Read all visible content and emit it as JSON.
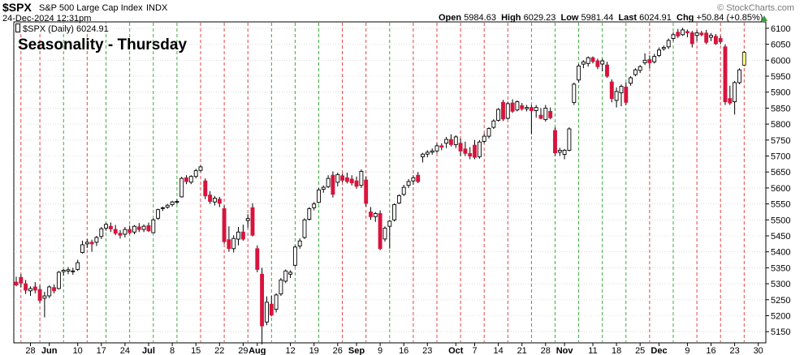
{
  "header": {
    "symbol": "$SPX",
    "name": "S&P 500 Large Cap Index",
    "exchange": "INDX",
    "date": "24-Dec-2024 12:31pm",
    "watermark": "© StockCharts.com",
    "open_label": "Open",
    "open": "5984.63",
    "high_label": "High",
    "high": "6029.23",
    "low_label": "Low",
    "low": "5981.44",
    "last_label": "Last",
    "last": "6024.91",
    "chg_label": "Chg",
    "chg": "+50.84 (+0.85%)",
    "legend": "$SPX (Daily) 6024.91"
  },
  "chart_data": {
    "type": "candlestick",
    "title": "Seasonality - Thursday",
    "y_ticks": [
      5150,
      5200,
      5250,
      5300,
      5350,
      5400,
      5450,
      5500,
      5550,
      5600,
      5650,
      5700,
      5750,
      5800,
      5850,
      5900,
      5950,
      6000,
      6050,
      6100
    ],
    "ylim": [
      5120,
      6110
    ],
    "x_labels": [
      {
        "text": "28",
        "bold": false,
        "idx": 3
      },
      {
        "text": "Jun",
        "bold": true,
        "idx": 7
      },
      {
        "text": "10",
        "bold": false,
        "idx": 13
      },
      {
        "text": "17",
        "bold": false,
        "idx": 18
      },
      {
        "text": "24",
        "bold": false,
        "idx": 23
      },
      {
        "text": "Jul",
        "bold": true,
        "idx": 28
      },
      {
        "text": "8",
        "bold": false,
        "idx": 33
      },
      {
        "text": "15",
        "bold": false,
        "idx": 38
      },
      {
        "text": "22",
        "bold": false,
        "idx": 43
      },
      {
        "text": "29",
        "bold": false,
        "idx": 48
      },
      {
        "text": "Aug",
        "bold": true,
        "idx": 51
      },
      {
        "text": "12",
        "bold": false,
        "idx": 58
      },
      {
        "text": "19",
        "bold": false,
        "idx": 63
      },
      {
        "text": "26",
        "bold": false,
        "idx": 68
      },
      {
        "text": "Sep",
        "bold": true,
        "idx": 72
      },
      {
        "text": "9",
        "bold": false,
        "idx": 77
      },
      {
        "text": "16",
        "bold": false,
        "idx": 82
      },
      {
        "text": "23",
        "bold": false,
        "idx": 87
      },
      {
        "text": "Oct",
        "bold": true,
        "idx": 93
      },
      {
        "text": "7",
        "bold": false,
        "idx": 97
      },
      {
        "text": "14",
        "bold": false,
        "idx": 102
      },
      {
        "text": "21",
        "bold": false,
        "idx": 107
      },
      {
        "text": "28",
        "bold": false,
        "idx": 112
      },
      {
        "text": "Nov",
        "bold": true,
        "idx": 116
      },
      {
        "text": "11",
        "bold": false,
        "idx": 122
      },
      {
        "text": "18",
        "bold": false,
        "idx": 127
      },
      {
        "text": "25",
        "bold": false,
        "idx": 132
      },
      {
        "text": "Dec",
        "bold": true,
        "idx": 136
      },
      {
        "text": "9",
        "bold": false,
        "idx": 142
      },
      {
        "text": "16",
        "bold": false,
        "idx": 147
      },
      {
        "text": "23",
        "bold": false,
        "idx": 152
      },
      {
        "text": "30",
        "bold": false,
        "idx": 157
      }
    ],
    "thursday_lines": [
      {
        "idx": 1,
        "color": "red"
      },
      {
        "idx": 5,
        "color": "red"
      },
      {
        "idx": 10,
        "color": "green"
      },
      {
        "idx": 15,
        "color": "red"
      },
      {
        "idx": 19,
        "color": "green"
      },
      {
        "idx": 24,
        "color": "green"
      },
      {
        "idx": 29,
        "color": "green"
      },
      {
        "idx": 34,
        "color": "green"
      },
      {
        "idx": 39,
        "color": "red"
      },
      {
        "idx": 44,
        "color": "red"
      },
      {
        "idx": 49,
        "color": "red"
      },
      {
        "idx": 54,
        "color": "green"
      },
      {
        "idx": 59,
        "color": "green"
      },
      {
        "idx": 64,
        "color": "green"
      },
      {
        "idx": 69,
        "color": "red"
      },
      {
        "idx": 74,
        "color": "red"
      },
      {
        "idx": 79,
        "color": "green"
      },
      {
        "idx": 84,
        "color": "red"
      },
      {
        "idx": 89,
        "color": "red"
      },
      {
        "idx": 94,
        "color": "red"
      },
      {
        "idx": 99,
        "color": "red"
      },
      {
        "idx": 104,
        "color": "red"
      },
      {
        "idx": 109,
        "color": "green"
      },
      {
        "idx": 114,
        "color": "green"
      },
      {
        "idx": 119,
        "color": "green"
      },
      {
        "idx": 124,
        "color": "green"
      },
      {
        "idx": 129,
        "color": "green"
      },
      {
        "idx": 134,
        "color": "red"
      },
      {
        "idx": 139,
        "color": "green"
      },
      {
        "idx": 144,
        "color": "red"
      },
      {
        "idx": 149,
        "color": "red"
      },
      {
        "idx": 154,
        "color": "red"
      }
    ],
    "candles": [
      {
        "o": 5305,
        "h": 5322,
        "l": 5292,
        "c": 5296
      },
      {
        "o": 5320,
        "h": 5330,
        "l": 5288,
        "c": 5302
      },
      {
        "o": 5300,
        "h": 5312,
        "l": 5268,
        "c": 5280
      },
      {
        "o": 5278,
        "h": 5292,
        "l": 5262,
        "c": 5285
      },
      {
        "o": 5290,
        "h": 5305,
        "l": 5270,
        "c": 5280
      },
      {
        "o": 5282,
        "h": 5295,
        "l": 5240,
        "c": 5248
      },
      {
        "o": 5255,
        "h": 5275,
        "l": 5195,
        "c": 5262
      },
      {
        "o": 5262,
        "h": 5295,
        "l": 5255,
        "c": 5290
      },
      {
        "o": 5288,
        "h": 5298,
        "l": 5270,
        "c": 5278
      },
      {
        "o": 5285,
        "h": 5340,
        "l": 5282,
        "c": 5336
      },
      {
        "o": 5338,
        "h": 5346,
        "l": 5325,
        "c": 5342
      },
      {
        "o": 5340,
        "h": 5352,
        "l": 5330,
        "c": 5344
      },
      {
        "o": 5338,
        "h": 5350,
        "l": 5328,
        "c": 5340
      },
      {
        "o": 5345,
        "h": 5375,
        "l": 5340,
        "c": 5366
      },
      {
        "o": 5398,
        "h": 5435,
        "l": 5395,
        "c": 5422
      },
      {
        "o": 5425,
        "h": 5440,
        "l": 5412,
        "c": 5430
      },
      {
        "o": 5430,
        "h": 5438,
        "l": 5400,
        "c": 5425
      },
      {
        "o": 5430,
        "h": 5450,
        "l": 5418,
        "c": 5445
      },
      {
        "o": 5448,
        "h": 5478,
        "l": 5440,
        "c": 5472
      },
      {
        "o": 5474,
        "h": 5490,
        "l": 5466,
        "c": 5486
      },
      {
        "o": 5480,
        "h": 5492,
        "l": 5462,
        "c": 5472
      },
      {
        "o": 5470,
        "h": 5484,
        "l": 5452,
        "c": 5458
      },
      {
        "o": 5458,
        "h": 5468,
        "l": 5442,
        "c": 5452
      },
      {
        "o": 5455,
        "h": 5478,
        "l": 5445,
        "c": 5470
      },
      {
        "o": 5470,
        "h": 5482,
        "l": 5455,
        "c": 5460
      },
      {
        "o": 5462,
        "h": 5484,
        "l": 5455,
        "c": 5480
      },
      {
        "o": 5478,
        "h": 5490,
        "l": 5462,
        "c": 5470
      },
      {
        "o": 5470,
        "h": 5486,
        "l": 5462,
        "c": 5480
      },
      {
        "o": 5482,
        "h": 5492,
        "l": 5462,
        "c": 5466
      },
      {
        "o": 5460,
        "h": 5505,
        "l": 5458,
        "c": 5500
      },
      {
        "o": 5505,
        "h": 5535,
        "l": 5500,
        "c": 5532
      },
      {
        "o": 5536,
        "h": 5542,
        "l": 5528,
        "c": 5538
      },
      {
        "o": 5540,
        "h": 5550,
        "l": 5535,
        "c": 5546
      },
      {
        "o": 5548,
        "h": 5560,
        "l": 5542,
        "c": 5556
      },
      {
        "o": 5556,
        "h": 5565,
        "l": 5550,
        "c": 5558
      },
      {
        "o": 5572,
        "h": 5635,
        "l": 5570,
        "c": 5630
      },
      {
        "o": 5632,
        "h": 5640,
        "l": 5612,
        "c": 5620
      },
      {
        "o": 5618,
        "h": 5640,
        "l": 5612,
        "c": 5636
      },
      {
        "o": 5636,
        "h": 5660,
        "l": 5630,
        "c": 5654
      },
      {
        "o": 5655,
        "h": 5672,
        "l": 5650,
        "c": 5666
      },
      {
        "o": 5622,
        "h": 5630,
        "l": 5565,
        "c": 5575
      },
      {
        "o": 5578,
        "h": 5590,
        "l": 5550,
        "c": 5558
      },
      {
        "o": 5556,
        "h": 5575,
        "l": 5545,
        "c": 5568
      },
      {
        "o": 5565,
        "h": 5572,
        "l": 5540,
        "c": 5552
      },
      {
        "o": 5535,
        "h": 5545,
        "l": 5425,
        "c": 5432
      },
      {
        "o": 5438,
        "h": 5480,
        "l": 5400,
        "c": 5410
      },
      {
        "o": 5410,
        "h": 5452,
        "l": 5398,
        "c": 5442
      },
      {
        "o": 5440,
        "h": 5478,
        "l": 5420,
        "c": 5462
      },
      {
        "o": 5462,
        "h": 5485,
        "l": 5435,
        "c": 5440
      },
      {
        "o": 5498,
        "h": 5518,
        "l": 5476,
        "c": 5504
      },
      {
        "o": 5538,
        "h": 5552,
        "l": 5448,
        "c": 5452
      },
      {
        "o": 5410,
        "h": 5420,
        "l": 5336,
        "c": 5345
      },
      {
        "o": 5330,
        "h": 5350,
        "l": 5110,
        "c": 5168
      },
      {
        "o": 5180,
        "h": 5260,
        "l": 5170,
        "c": 5242
      },
      {
        "o": 5236,
        "h": 5262,
        "l": 5198,
        "c": 5202
      },
      {
        "o": 5220,
        "h": 5270,
        "l": 5210,
        "c": 5265
      },
      {
        "o": 5268,
        "h": 5318,
        "l": 5262,
        "c": 5312
      },
      {
        "o": 5308,
        "h": 5345,
        "l": 5302,
        "c": 5340
      },
      {
        "o": 5330,
        "h": 5342,
        "l": 5318,
        "c": 5336
      },
      {
        "o": 5358,
        "h": 5420,
        "l": 5354,
        "c": 5415
      },
      {
        "o": 5418,
        "h": 5442,
        "l": 5410,
        "c": 5434
      },
      {
        "o": 5445,
        "h": 5505,
        "l": 5440,
        "c": 5500
      },
      {
        "o": 5502,
        "h": 5540,
        "l": 5498,
        "c": 5535
      },
      {
        "o": 5538,
        "h": 5556,
        "l": 5530,
        "c": 5550
      },
      {
        "o": 5555,
        "h": 5600,
        "l": 5552,
        "c": 5594
      },
      {
        "o": 5596,
        "h": 5608,
        "l": 5585,
        "c": 5602
      },
      {
        "o": 5604,
        "h": 5640,
        "l": 5600,
        "c": 5630
      },
      {
        "o": 5640,
        "h": 5652,
        "l": 5570,
        "c": 5580
      },
      {
        "o": 5618,
        "h": 5648,
        "l": 5605,
        "c": 5642
      },
      {
        "o": 5638,
        "h": 5645,
        "l": 5618,
        "c": 5624
      },
      {
        "o": 5632,
        "h": 5648,
        "l": 5614,
        "c": 5620
      },
      {
        "o": 5628,
        "h": 5640,
        "l": 5608,
        "c": 5616
      },
      {
        "o": 5622,
        "h": 5636,
        "l": 5598,
        "c": 5605
      },
      {
        "o": 5608,
        "h": 5658,
        "l": 5600,
        "c": 5652
      },
      {
        "o": 5625,
        "h": 5635,
        "l": 5542,
        "c": 5552
      },
      {
        "o": 5525,
        "h": 5540,
        "l": 5500,
        "c": 5510
      },
      {
        "o": 5510,
        "h": 5525,
        "l": 5494,
        "c": 5520
      },
      {
        "o": 5520,
        "h": 5530,
        "l": 5405,
        "c": 5410
      },
      {
        "o": 5440,
        "h": 5480,
        "l": 5432,
        "c": 5474
      },
      {
        "o": 5480,
        "h": 5500,
        "l": 5410,
        "c": 5496
      },
      {
        "o": 5500,
        "h": 5552,
        "l": 5495,
        "c": 5548
      },
      {
        "o": 5553,
        "h": 5580,
        "l": 5550,
        "c": 5576
      },
      {
        "o": 5580,
        "h": 5610,
        "l": 5575,
        "c": 5602
      },
      {
        "o": 5608,
        "h": 5628,
        "l": 5600,
        "c": 5620
      },
      {
        "o": 5622,
        "h": 5640,
        "l": 5610,
        "c": 5632
      },
      {
        "o": 5640,
        "h": 5650,
        "l": 5615,
        "c": 5620
      },
      {
        "o": 5698,
        "h": 5710,
        "l": 5680,
        "c": 5706
      },
      {
        "o": 5706,
        "h": 5718,
        "l": 5696,
        "c": 5712
      },
      {
        "o": 5712,
        "h": 5724,
        "l": 5704,
        "c": 5716
      },
      {
        "o": 5716,
        "h": 5740,
        "l": 5710,
        "c": 5732
      },
      {
        "o": 5732,
        "h": 5740,
        "l": 5718,
        "c": 5728
      },
      {
        "o": 5740,
        "h": 5760,
        "l": 5725,
        "c": 5752
      },
      {
        "o": 5752,
        "h": 5768,
        "l": 5730,
        "c": 5736
      },
      {
        "o": 5736,
        "h": 5765,
        "l": 5725,
        "c": 5760
      },
      {
        "o": 5740,
        "h": 5755,
        "l": 5700,
        "c": 5716
      },
      {
        "o": 5722,
        "h": 5745,
        "l": 5700,
        "c": 5708
      },
      {
        "o": 5708,
        "h": 5728,
        "l": 5690,
        "c": 5700
      },
      {
        "o": 5734,
        "h": 5750,
        "l": 5690,
        "c": 5696
      },
      {
        "o": 5698,
        "h": 5750,
        "l": 5692,
        "c": 5744
      },
      {
        "o": 5746,
        "h": 5770,
        "l": 5740,
        "c": 5762
      },
      {
        "o": 5762,
        "h": 5790,
        "l": 5755,
        "c": 5786
      },
      {
        "o": 5790,
        "h": 5815,
        "l": 5785,
        "c": 5810
      },
      {
        "o": 5812,
        "h": 5850,
        "l": 5808,
        "c": 5846
      },
      {
        "o": 5868,
        "h": 5876,
        "l": 5810,
        "c": 5816
      },
      {
        "o": 5818,
        "h": 5870,
        "l": 5815,
        "c": 5864
      },
      {
        "o": 5866,
        "h": 5878,
        "l": 5835,
        "c": 5840
      },
      {
        "o": 5844,
        "h": 5874,
        "l": 5840,
        "c": 5870
      },
      {
        "o": 5858,
        "h": 5866,
        "l": 5842,
        "c": 5848
      },
      {
        "o": 5848,
        "h": 5860,
        "l": 5840,
        "c": 5852
      },
      {
        "o": 5852,
        "h": 5860,
        "l": 5768,
        "c": 5842
      },
      {
        "o": 5842,
        "h": 5860,
        "l": 5820,
        "c": 5852
      },
      {
        "o": 5828,
        "h": 5850,
        "l": 5815,
        "c": 5818
      },
      {
        "o": 5814,
        "h": 5860,
        "l": 5808,
        "c": 5850
      },
      {
        "o": 5840,
        "h": 5852,
        "l": 5815,
        "c": 5820
      },
      {
        "o": 5780,
        "h": 5790,
        "l": 5700,
        "c": 5710
      },
      {
        "o": 5712,
        "h": 5726,
        "l": 5700,
        "c": 5718
      },
      {
        "o": 5705,
        "h": 5722,
        "l": 5690,
        "c": 5718
      },
      {
        "o": 5718,
        "h": 5790,
        "l": 5715,
        "c": 5785
      },
      {
        "o": 5868,
        "h": 5930,
        "l": 5860,
        "c": 5925
      },
      {
        "o": 5938,
        "h": 5988,
        "l": 5930,
        "c": 5982
      },
      {
        "o": 5988,
        "h": 6000,
        "l": 5975,
        "c": 5995
      },
      {
        "o": 5990,
        "h": 6012,
        "l": 5980,
        "c": 6008
      },
      {
        "o": 6008,
        "h": 6012,
        "l": 5990,
        "c": 5996
      },
      {
        "o": 5998,
        "h": 6005,
        "l": 5972,
        "c": 5980
      },
      {
        "o": 5988,
        "h": 6005,
        "l": 5965,
        "c": 5998
      },
      {
        "o": 5985,
        "h": 5995,
        "l": 5945,
        "c": 5950
      },
      {
        "o": 5932,
        "h": 5940,
        "l": 5868,
        "c": 5880
      },
      {
        "o": 5874,
        "h": 5915,
        "l": 5852,
        "c": 5902
      },
      {
        "o": 5898,
        "h": 5924,
        "l": 5856,
        "c": 5918
      },
      {
        "o": 5916,
        "h": 5930,
        "l": 5860,
        "c": 5868
      },
      {
        "o": 5928,
        "h": 5950,
        "l": 5920,
        "c": 5945
      },
      {
        "o": 5955,
        "h": 5975,
        "l": 5950,
        "c": 5970
      },
      {
        "o": 5968,
        "h": 5985,
        "l": 5960,
        "c": 5980
      },
      {
        "o": 5992,
        "h": 6022,
        "l": 5985,
        "c": 6000
      },
      {
        "o": 6002,
        "h": 6015,
        "l": 5975,
        "c": 5992
      },
      {
        "o": 5995,
        "h": 6020,
        "l": 5990,
        "c": 6012
      },
      {
        "o": 6015,
        "h": 6040,
        "l": 6010,
        "c": 6032
      },
      {
        "o": 6036,
        "h": 6046,
        "l": 6030,
        "c": 6040
      },
      {
        "o": 6042,
        "h": 6068,
        "l": 6035,
        "c": 6062
      },
      {
        "o": 6068,
        "h": 6088,
        "l": 6060,
        "c": 6080
      },
      {
        "o": 6088,
        "h": 6098,
        "l": 6070,
        "c": 6076
      },
      {
        "o": 6080,
        "h": 6102,
        "l": 6076,
        "c": 6095
      },
      {
        "o": 6090,
        "h": 6096,
        "l": 6072,
        "c": 6086
      },
      {
        "o": 6086,
        "h": 6092,
        "l": 6040,
        "c": 6052
      },
      {
        "o": 6078,
        "h": 6094,
        "l": 6060,
        "c": 6086
      },
      {
        "o": 6085,
        "h": 6092,
        "l": 6075,
        "c": 6080
      },
      {
        "o": 6085,
        "h": 6095,
        "l": 6050,
        "c": 6056
      },
      {
        "o": 6072,
        "h": 6085,
        "l": 6060,
        "c": 6078
      },
      {
        "o": 6075,
        "h": 6082,
        "l": 6048,
        "c": 6052
      },
      {
        "o": 6068,
        "h": 6076,
        "l": 6050,
        "c": 6058
      },
      {
        "o": 6042,
        "h": 6050,
        "l": 5860,
        "c": 5870
      },
      {
        "o": 5880,
        "h": 5920,
        "l": 5860,
        "c": 5866
      },
      {
        "o": 5870,
        "h": 5935,
        "l": 5830,
        "c": 5930
      },
      {
        "o": 5930,
        "h": 5975,
        "l": 5925,
        "c": 5970
      },
      {
        "o": 5984.63,
        "h": 6029.23,
        "l": 5981.44,
        "c": 6024.91,
        "last": true
      }
    ]
  },
  "colors": {
    "up_body": "#ffffff",
    "down_body": "#d8143c",
    "last_body": "#ffff80",
    "green_line": "#2aa02a",
    "red_line": "#e03030",
    "title_color": "#1a1adc",
    "grid": "#c8c8c8",
    "up_arrow": "#3c9a3c"
  }
}
